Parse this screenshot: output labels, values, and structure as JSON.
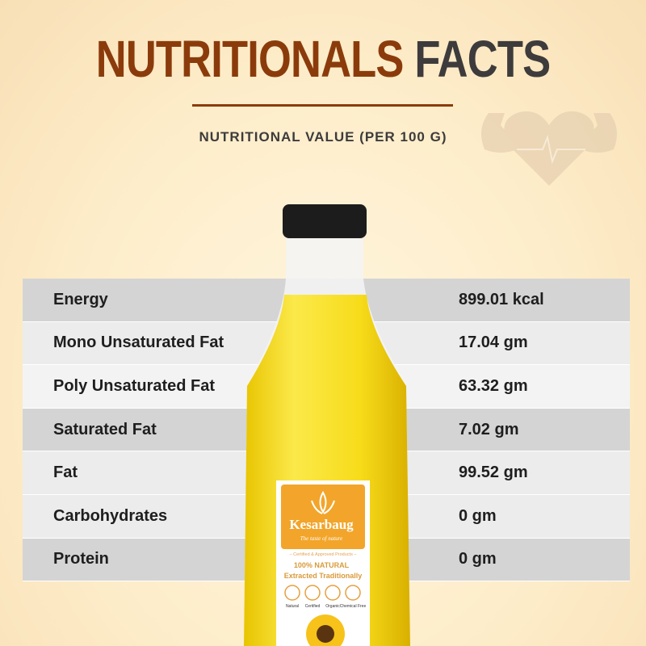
{
  "header": {
    "title_part1": "NUTRITIONALS",
    "title_part2": "FACTS",
    "subtitle": "NUTRITIONAL VALUE (PER 100 G)"
  },
  "colors": {
    "title_accent": "#8b3b0b",
    "title_dark": "#3d3b3b",
    "row_dark": "#d4d4d4",
    "row_light": "#ececec",
    "label_orange": "#f2a52a"
  },
  "decor_icon": "muscle-heart-icon",
  "nutrition": [
    {
      "name": "Energy",
      "value": "899.01 kcal"
    },
    {
      "name": "Mono Unsaturated Fat",
      "value": "17.04 gm"
    },
    {
      "name": "Poly Unsaturated Fat",
      "value": "63.32 gm"
    },
    {
      "name": "Saturated Fat",
      "value": "7.02 gm"
    },
    {
      "name": "Fat",
      "value": "99.52 gm"
    },
    {
      "name": "Carbohydrates",
      "value": "0 gm"
    },
    {
      "name": "Protein",
      "value": "0 gm"
    }
  ],
  "bottle_label": {
    "brand": "Kesarbaug",
    "tagline": "The taste of nature",
    "certified": "– Certified & Approved Products –",
    "natural": "100% NATURAL",
    "extracted": "Extracted Traditionally",
    "badges": [
      "Natural",
      "Certified",
      "Organic",
      "Chemical Free"
    ]
  }
}
